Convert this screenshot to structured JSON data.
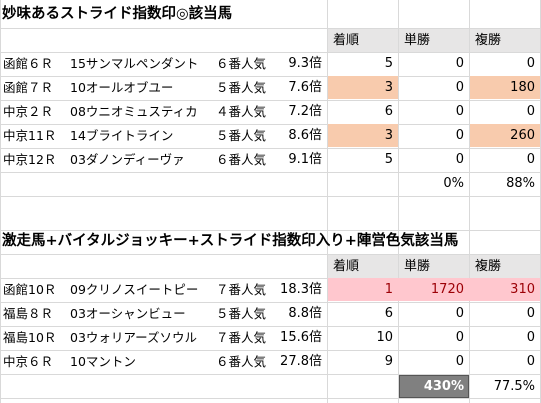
{
  "section1": {
    "title": "妙味あるストライド指数印◎該当馬",
    "headers": [
      "着順",
      "単勝",
      "複勝"
    ],
    "rows": [
      {
        "race": "函館６Ｒ",
        "horse": "15サンマルペンダント",
        "pop": "６番人気",
        "odds": "9.3倍",
        "rank": "5",
        "win": "0",
        "place": "0"
      },
      {
        "race": "函館７Ｒ",
        "horse": "10オールオブユー",
        "pop": "５番人気",
        "odds": "7.6倍",
        "rank": "3",
        "win": "0",
        "place": "180"
      },
      {
        "race": "中京２Ｒ",
        "horse": "08ウニオミュスティカ",
        "pop": "４番人気",
        "odds": "7.2倍",
        "rank": "6",
        "win": "0",
        "place": "0"
      },
      {
        "race": "中京11Ｒ",
        "horse": "14ブライトライン",
        "pop": "５番人気",
        "odds": "8.6倍",
        "rank": "3",
        "win": "0",
        "place": "260"
      },
      {
        "race": "中京12Ｒ",
        "horse": "03ダノンディーヴァ",
        "pop": "６番人気",
        "odds": "9.1倍",
        "rank": "5",
        "win": "0",
        "place": "0"
      }
    ],
    "win_rate": "0%",
    "place_rate": "88%"
  },
  "section2": {
    "title": "激走馬+バイタルジョッキー+ストライド指数印入り+陣営色気該当馬",
    "headers": [
      "着順",
      "単勝",
      "複勝"
    ],
    "rows": [
      {
        "race": "函館10Ｒ",
        "horse": "09クリノスイートピー",
        "pop": "７番人気",
        "odds": "18.3倍",
        "rank": "1",
        "win": "1720",
        "place": "310"
      },
      {
        "race": "福島８Ｒ",
        "horse": "03オーシャンビュー",
        "pop": "５番人気",
        "odds": "8.8倍",
        "rank": "6",
        "win": "0",
        "place": "0"
      },
      {
        "race": "福島10Ｒ",
        "horse": "03ウォリアーズソウル",
        "pop": "７番人気",
        "odds": "15.6倍",
        "rank": "10",
        "win": "0",
        "place": "0"
      },
      {
        "race": "中京６Ｒ",
        "horse": "10マントン",
        "pop": "６番人気",
        "odds": "27.8倍",
        "rank": "9",
        "win": "0",
        "place": "0"
      }
    ],
    "win_rate": "430%",
    "place_rate": "77.5%"
  },
  "colors": {
    "highlight_peach": "#f8cbad",
    "highlight_pink": "#ffc7ce",
    "header_grey": "#e7e6e6",
    "total_grey": "#808080"
  }
}
